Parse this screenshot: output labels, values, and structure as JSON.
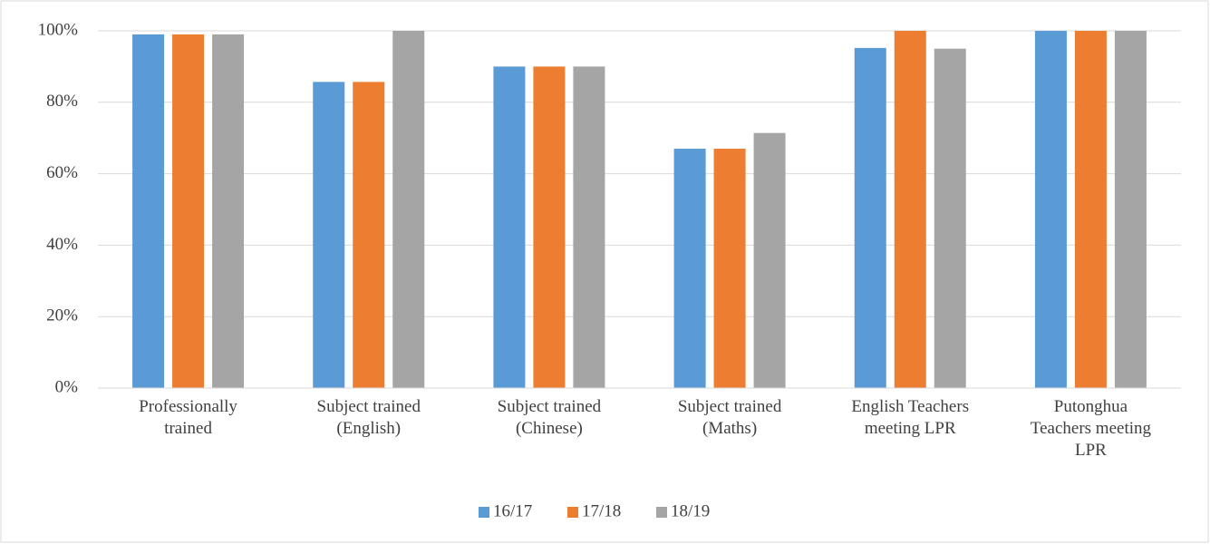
{
  "chart_data": {
    "type": "bar",
    "categories": [
      "Professionally trained",
      "Subject trained (English)",
      "Subject trained (Chinese)",
      "Subject trained (Maths)",
      "English Teachers meeting LPR",
      "Putonghua Teachers meeting LPR"
    ],
    "series": [
      {
        "name": "16/17",
        "color": "#5b9bd5",
        "values": [
          99,
          85.7,
          90,
          67,
          95.2,
          100
        ]
      },
      {
        "name": "17/18",
        "color": "#ed7d31",
        "values": [
          99,
          85.7,
          90,
          67,
          100,
          100
        ]
      },
      {
        "name": "18/19",
        "color": "#a5a5a5",
        "values": [
          99,
          100,
          90,
          71.4,
          95,
          100
        ]
      }
    ],
    "ylim": [
      0,
      100
    ],
    "yticks": [
      {
        "value": 0,
        "label": "0%"
      },
      {
        "value": 20,
        "label": "20%"
      },
      {
        "value": 40,
        "label": "40%"
      },
      {
        "value": 60,
        "label": "60%"
      },
      {
        "value": 80,
        "label": "80%"
      },
      {
        "value": 100,
        "label": "100%"
      }
    ],
    "grid": true,
    "legend": "bottom"
  }
}
